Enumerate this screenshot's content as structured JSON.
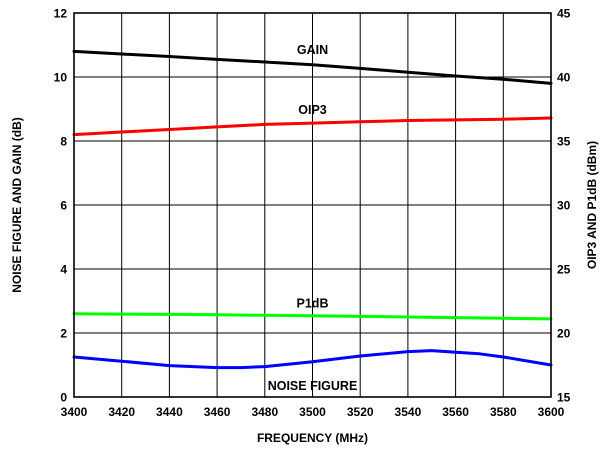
{
  "chart_data": {
    "type": "line",
    "xlabel": "FREQUENCY (MHz)",
    "ylabel_left": "NOISE FIGURE AND GAIN (dB)",
    "ylabel_right": "OIP3 AND P1dB (dBm)",
    "xlim": [
      3400,
      3600
    ],
    "ylim_left": [
      0,
      12
    ],
    "ylim_right": [
      15,
      45
    ],
    "x_ticks": [
      "3400",
      "3420",
      "3440",
      "3460",
      "3480",
      "3500",
      "3520",
      "3540",
      "3560",
      "3580",
      "3600"
    ],
    "y_left_ticks": [
      "0",
      "2",
      "4",
      "6",
      "8",
      "10",
      "12"
    ],
    "y_right_ticks": [
      "15",
      "20",
      "25",
      "30",
      "35",
      "40",
      "45"
    ],
    "grid": true,
    "series": [
      {
        "name": "GAIN",
        "axis": "left",
        "color": "#000000",
        "x": [
          3400,
          3420,
          3440,
          3460,
          3480,
          3500,
          3520,
          3540,
          3560,
          3580,
          3600
        ],
        "values": [
          10.8,
          10.72,
          10.64,
          10.55,
          10.47,
          10.38,
          10.27,
          10.15,
          10.03,
          9.93,
          9.8
        ]
      },
      {
        "name": "OIP3",
        "axis": "right",
        "color": "#ff0000",
        "x": [
          3400,
          3420,
          3440,
          3460,
          3480,
          3500,
          3520,
          3540,
          3560,
          3580,
          3600
        ],
        "values": [
          35.5,
          35.7,
          35.9,
          36.1,
          36.3,
          36.4,
          36.5,
          36.6,
          36.65,
          36.7,
          36.8
        ]
      },
      {
        "name": "P1dB",
        "axis": "right",
        "color": "#00ff00",
        "x": [
          3400,
          3420,
          3440,
          3460,
          3480,
          3500,
          3520,
          3540,
          3560,
          3580,
          3600
        ],
        "values": [
          21.5,
          21.48,
          21.45,
          21.42,
          21.38,
          21.35,
          21.3,
          21.25,
          21.2,
          21.15,
          21.1
        ]
      },
      {
        "name": "NOISE FIGURE",
        "axis": "left",
        "color": "#0000ff",
        "x": [
          3400,
          3420,
          3440,
          3460,
          3470,
          3480,
          3500,
          3520,
          3540,
          3550,
          3560,
          3570,
          3580,
          3600
        ],
        "values": [
          1.25,
          1.12,
          0.98,
          0.92,
          0.92,
          0.95,
          1.1,
          1.28,
          1.42,
          1.45,
          1.4,
          1.35,
          1.25,
          1.0
        ]
      }
    ]
  }
}
